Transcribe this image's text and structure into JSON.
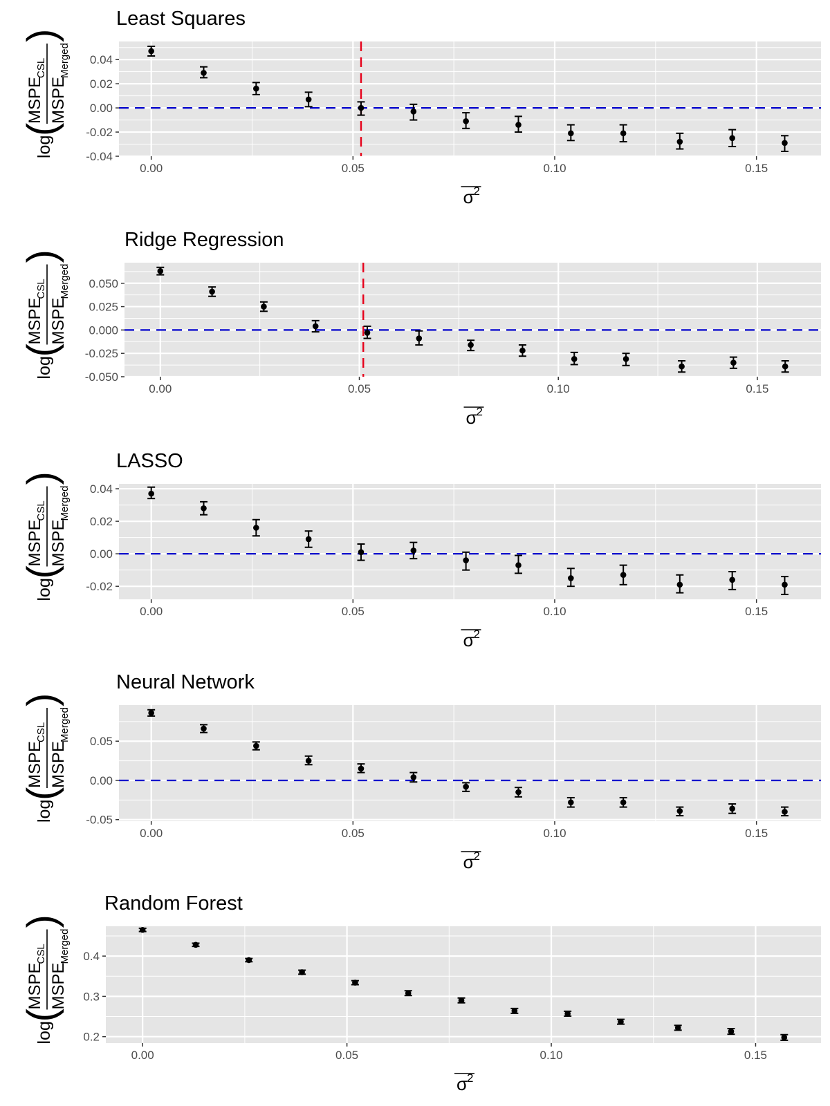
{
  "chart_data": [
    {
      "type": "scatter",
      "title": "Least Squares",
      "xlabel": "σ2",
      "ylabel": "log(MSPE_CSL / MSPE_Merged)",
      "xlim": [
        -0.008,
        0.166
      ],
      "ylim": [
        -0.04,
        0.055
      ],
      "x_ticks": [
        "0.00",
        "0.05",
        "0.10",
        "0.15"
      ],
      "y_ticks": [
        "-0.04",
        "-0.02",
        "0.00",
        "0.02",
        "0.04"
      ],
      "y_tick_values": [
        -0.04,
        -0.02,
        0.0,
        0.02,
        0.04
      ],
      "hline": 0,
      "vline": 0.052,
      "x": [
        0.0,
        0.013,
        0.026,
        0.039,
        0.052,
        0.065,
        0.078,
        0.091,
        0.104,
        0.117,
        0.131,
        0.144,
        0.157
      ],
      "values": [
        0.047,
        0.029,
        0.016,
        0.007,
        0.0,
        -0.003,
        -0.011,
        -0.014,
        -0.021,
        -0.021,
        -0.028,
        -0.025,
        -0.029
      ],
      "lower": [
        0.043,
        0.025,
        0.011,
        0.001,
        -0.006,
        -0.01,
        -0.017,
        -0.02,
        -0.027,
        -0.028,
        -0.034,
        -0.032,
        -0.036
      ],
      "upper": [
        0.051,
        0.034,
        0.021,
        0.013,
        0.005,
        0.003,
        -0.004,
        -0.007,
        -0.014,
        -0.014,
        -0.021,
        -0.018,
        -0.023
      ]
    },
    {
      "type": "scatter",
      "title": "Ridge Regression",
      "xlabel": "σ2",
      "ylabel": "log(MSPE_CSL / MSPE_Merged)",
      "xlim": [
        -0.009,
        0.166
      ],
      "ylim": [
        -0.05,
        0.072
      ],
      "x_ticks": [
        "0.00",
        "0.05",
        "0.10",
        "0.15"
      ],
      "y_ticks": [
        "-0.050",
        "-0.025",
        "0.000",
        "0.025",
        "0.050"
      ],
      "y_tick_values": [
        -0.05,
        -0.025,
        0.0,
        0.025,
        0.05
      ],
      "hline": 0,
      "vline": 0.051,
      "x": [
        0.0,
        0.013,
        0.026,
        0.039,
        0.052,
        0.065,
        0.078,
        0.091,
        0.104,
        0.117,
        0.131,
        0.144,
        0.157
      ],
      "values": [
        0.063,
        0.041,
        0.025,
        0.004,
        -0.003,
        -0.009,
        -0.016,
        -0.022,
        -0.031,
        -0.031,
        -0.039,
        -0.035,
        -0.039
      ],
      "lower": [
        0.059,
        0.036,
        0.02,
        -0.002,
        -0.009,
        -0.016,
        -0.022,
        -0.028,
        -0.037,
        -0.038,
        -0.045,
        -0.041,
        -0.045
      ],
      "upper": [
        0.067,
        0.046,
        0.03,
        0.01,
        0.004,
        -0.001,
        -0.011,
        -0.016,
        -0.024,
        -0.025,
        -0.033,
        -0.029,
        -0.033
      ]
    },
    {
      "type": "scatter",
      "title": "LASSO",
      "xlabel": "σ2",
      "ylabel": "log(MSPE_CSL / MSPE_Merged)",
      "xlim": [
        -0.008,
        0.166
      ],
      "ylim": [
        -0.028,
        0.043
      ],
      "x_ticks": [
        "0.00",
        "0.05",
        "0.10",
        "0.15"
      ],
      "y_ticks": [
        "-0.02",
        "0.00",
        "0.02",
        "0.04"
      ],
      "y_tick_values": [
        -0.02,
        0.0,
        0.02,
        0.04
      ],
      "hline": 0,
      "x": [
        0.0,
        0.013,
        0.026,
        0.039,
        0.052,
        0.065,
        0.078,
        0.091,
        0.104,
        0.117,
        0.131,
        0.144,
        0.157
      ],
      "values": [
        0.037,
        0.028,
        0.016,
        0.009,
        0.001,
        0.002,
        -0.004,
        -0.007,
        -0.015,
        -0.013,
        -0.019,
        -0.016,
        -0.019
      ],
      "lower": [
        0.034,
        0.024,
        0.011,
        0.004,
        -0.004,
        -0.003,
        -0.01,
        -0.012,
        -0.02,
        -0.019,
        -0.024,
        -0.022,
        -0.025
      ],
      "upper": [
        0.041,
        0.032,
        0.021,
        0.014,
        0.006,
        0.007,
        0.001,
        -0.001,
        -0.009,
        -0.007,
        -0.013,
        -0.011,
        -0.014
      ]
    },
    {
      "type": "scatter",
      "title": "Neural Network",
      "xlabel": "σ2",
      "ylabel": "log(MSPE_CSL / MSPE_Merged)",
      "xlim": [
        -0.008,
        0.166
      ],
      "ylim": [
        -0.052,
        0.096
      ],
      "x_ticks": [
        "0.00",
        "0.05",
        "0.10",
        "0.15"
      ],
      "y_ticks": [
        "-0.05",
        "0.00",
        "0.05"
      ],
      "y_tick_values": [
        -0.05,
        0.0,
        0.05
      ],
      "hline": 0,
      "x": [
        0.0,
        0.013,
        0.026,
        0.039,
        0.052,
        0.065,
        0.078,
        0.091,
        0.104,
        0.117,
        0.131,
        0.144,
        0.157
      ],
      "values": [
        0.086,
        0.066,
        0.044,
        0.025,
        0.015,
        0.004,
        -0.008,
        -0.015,
        -0.028,
        -0.028,
        -0.039,
        -0.036,
        -0.04
      ],
      "lower": [
        0.082,
        0.061,
        0.039,
        0.02,
        0.01,
        -0.002,
        -0.014,
        -0.021,
        -0.034,
        -0.034,
        -0.045,
        -0.042,
        -0.045
      ],
      "upper": [
        0.09,
        0.071,
        0.049,
        0.031,
        0.021,
        0.01,
        -0.003,
        -0.009,
        -0.022,
        -0.022,
        -0.034,
        -0.03,
        -0.034
      ]
    },
    {
      "type": "scatter",
      "title": "Random Forest",
      "xlabel": "σ2",
      "ylabel": "log(MSPE_CSL / MSPE_Merged)",
      "xlim": [
        -0.009,
        0.166
      ],
      "ylim": [
        0.184,
        0.474
      ],
      "x_ticks": [
        "0.00",
        "0.05",
        "0.10",
        "0.15"
      ],
      "y_ticks": [
        "0.2",
        "0.3",
        "0.4"
      ],
      "y_tick_values": [
        0.2,
        0.3,
        0.4
      ],
      "x": [
        0.0,
        0.013,
        0.026,
        0.039,
        0.052,
        0.065,
        0.078,
        0.091,
        0.104,
        0.117,
        0.131,
        0.144,
        0.157
      ],
      "values": [
        0.465,
        0.428,
        0.39,
        0.36,
        0.334,
        0.308,
        0.29,
        0.264,
        0.257,
        0.237,
        0.222,
        0.213,
        0.198
      ],
      "lower": [
        0.461,
        0.424,
        0.386,
        0.355,
        0.329,
        0.302,
        0.284,
        0.258,
        0.251,
        0.231,
        0.216,
        0.206,
        0.191
      ],
      "upper": [
        0.469,
        0.432,
        0.394,
        0.365,
        0.339,
        0.314,
        0.296,
        0.27,
        0.263,
        0.243,
        0.228,
        0.22,
        0.205
      ]
    }
  ],
  "labels": {
    "y_log": "log",
    "y_num_main": "MSPE",
    "y_num_sub": "CSL",
    "y_den_main": "MSPE",
    "y_den_sub": "Merged",
    "x_sigma": "σ",
    "x_sup": "2"
  },
  "colors": {
    "panel_bg": "#e5e5e5",
    "grid": "#ffffff",
    "points": "#000000",
    "hline": "#0000cc",
    "vline": "#e6001a"
  }
}
